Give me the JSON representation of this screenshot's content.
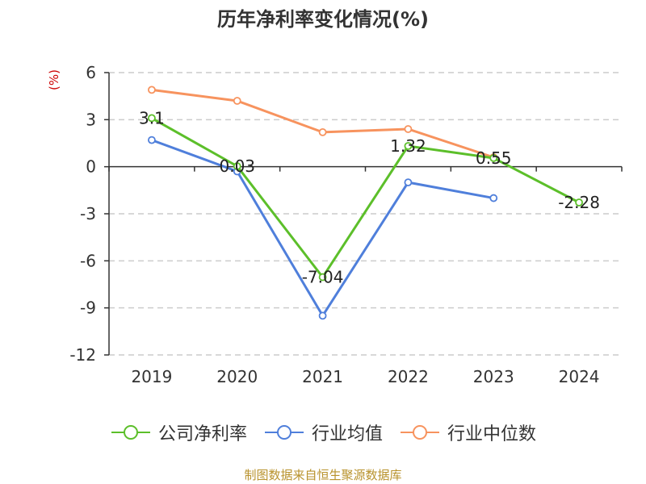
{
  "title": "历年净利率变化情况(%)",
  "unit_label": "(%)",
  "source": "制图数据来自恒生聚源数据库",
  "colors": {
    "company": "#5cbf2a",
    "industry_avg": "#4f7fdb",
    "industry_median": "#f7935e",
    "unit_label": "#cc0000",
    "source": "#b8922c",
    "grid": "#cccccc",
    "axis": "#333333"
  },
  "chart_data": {
    "type": "line",
    "title": "历年净利率变化情况(%)",
    "xlabel": "",
    "ylabel": "(%)",
    "categories": [
      "2019",
      "2020",
      "2021",
      "2022",
      "2023",
      "2024"
    ],
    "ylim": [
      -12,
      6
    ],
    "yticks": [
      6,
      3,
      0,
      -3,
      -6,
      -9,
      -12
    ],
    "ytick_labels": [
      "6",
      "3",
      "0",
      "-3",
      "-6",
      "-9",
      "-12"
    ],
    "grid": true,
    "legend_position": "bottom",
    "series": [
      {
        "name": "公司净利率",
        "color": "#5cbf2a",
        "values": [
          3.1,
          0.03,
          -7.04,
          1.32,
          0.55,
          -2.28
        ],
        "labels": [
          "3.1",
          "0.03",
          "-7.04",
          "1.32",
          "0.55",
          "-2.28"
        ]
      },
      {
        "name": "行业均值",
        "color": "#4f7fdb",
        "values": [
          1.7,
          -0.3,
          -9.5,
          -1.0,
          -2.0,
          null
        ]
      },
      {
        "name": "行业中位数",
        "color": "#f7935e",
        "values": [
          4.9,
          4.2,
          2.2,
          2.4,
          0.6,
          null
        ]
      }
    ]
  }
}
